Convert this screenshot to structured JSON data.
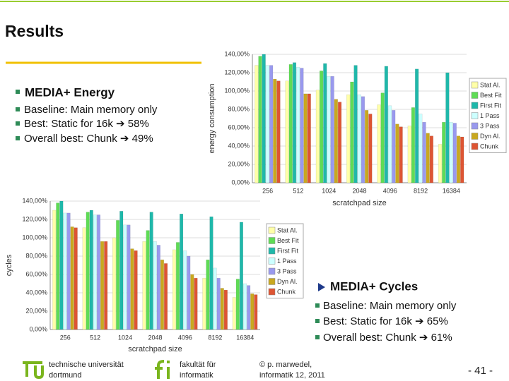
{
  "title": "Results",
  "left_block": {
    "heading": "MEDIA+ Energy",
    "bullets": [
      "Baseline: Main memory only",
      "Best: Static for 16k ➔ 58%",
      "Overall best: Chunk ➔ 49%"
    ]
  },
  "right_block": {
    "heading": "MEDIA+ Cycles",
    "bullets": [
      "Baseline: Main memory only",
      "Best: Static for 16k ➔ 65%",
      "Overall best: Chunk ➔ 61%"
    ]
  },
  "chart_data": [
    {
      "type": "bar",
      "y_label": "energy consumption",
      "x_label": "scratchpad size",
      "grid": true,
      "categories": [
        "256",
        "512",
        "1024",
        "2048",
        "4096",
        "8192",
        "16384"
      ],
      "series": [
        {
          "name": "Stat Al.",
          "color": "#ffffa8",
          "values": [
            128,
            111,
            101,
            96,
            85,
            62,
            42
          ]
        },
        {
          "name": "Best Fit",
          "color": "#5fdc55",
          "values": [
            138,
            129,
            122,
            110,
            98,
            82,
            66
          ]
        },
        {
          "name": "First Fit",
          "color": "#1fb8aa",
          "values": [
            140,
            131,
            130,
            128,
            127,
            124,
            120
          ]
        },
        {
          "name": "1 Pass",
          "color": "#ccffff",
          "values": [
            128,
            126,
            116,
            96,
            84,
            75,
            66
          ]
        },
        {
          "name": "3 Pass",
          "color": "#9999ee",
          "values": [
            128,
            125,
            116,
            94,
            79,
            66,
            65
          ]
        },
        {
          "name": "Dyn Al.",
          "color": "#c9a81f",
          "values": [
            113,
            97,
            91,
            79,
            64,
            54,
            51
          ]
        },
        {
          "name": "Chunk",
          "color": "#dd5533",
          "values": [
            111,
            97,
            88,
            75,
            61,
            51,
            50
          ]
        }
      ],
      "ylim": [
        0,
        140
      ],
      "yticks": [
        {
          "value": 0,
          "label": "0,00%"
        },
        {
          "value": 20,
          "label": "20,00%"
        },
        {
          "value": 40,
          "label": "40,00%"
        },
        {
          "value": 60,
          "label": "60,00%"
        },
        {
          "value": 80,
          "label": "80,00%"
        },
        {
          "value": 100,
          "label": "100,00%"
        },
        {
          "value": 120,
          "label": "120,00%"
        },
        {
          "value": 140,
          "label": "140,00%"
        }
      ]
    },
    {
      "type": "bar",
      "y_label": "cycles",
      "x_label": "scratchpad size",
      "grid": true,
      "categories": [
        "256",
        "512",
        "1024",
        "2048",
        "4096",
        "8192",
        "16384"
      ],
      "series": [
        {
          "name": "Stat Al.",
          "color": "#ffffa8",
          "values": [
            130,
            111,
            100,
            96,
            87,
            56,
            35
          ]
        },
        {
          "name": "Best Fit",
          "color": "#5fdc55",
          "values": [
            138,
            128,
            119,
            108,
            95,
            76,
            55
          ]
        },
        {
          "name": "First Fit",
          "color": "#1fb8aa",
          "values": [
            140,
            130,
            129,
            128,
            126,
            123,
            117
          ]
        },
        {
          "name": "1 Pass",
          "color": "#ccffff",
          "values": [
            127,
            125,
            114,
            96,
            86,
            67,
            50
          ]
        },
        {
          "name": "3 Pass",
          "color": "#9999ee",
          "values": [
            127,
            125,
            114,
            92,
            80,
            56,
            48
          ]
        },
        {
          "name": "Dyn Al.",
          "color": "#c9a81f",
          "values": [
            112,
            96,
            88,
            76,
            60,
            45,
            39
          ]
        },
        {
          "name": "Chunk",
          "color": "#dd5533",
          "values": [
            111,
            96,
            86,
            72,
            56,
            43,
            38
          ]
        }
      ],
      "ylim": [
        0,
        140
      ],
      "yticks": [
        {
          "value": 0,
          "label": "0,00%"
        },
        {
          "value": 20,
          "label": "20,00%"
        },
        {
          "value": 40,
          "label": "40,00%"
        },
        {
          "value": 60,
          "label": "60,00%"
        },
        {
          "value": 80,
          "label": "80,00%"
        },
        {
          "value": 100,
          "label": "100,00%"
        },
        {
          "value": 120,
          "label": "120,00%"
        },
        {
          "value": 140,
          "label": "140,00%"
        }
      ]
    }
  ],
  "footer": {
    "university": [
      "technische universität",
      "dortmund"
    ],
    "faculty": [
      "fakultät für",
      "informatik"
    ],
    "author": [
      "© p. marwedel,",
      "informatik 12, 2011"
    ],
    "page": "- 41 -"
  }
}
